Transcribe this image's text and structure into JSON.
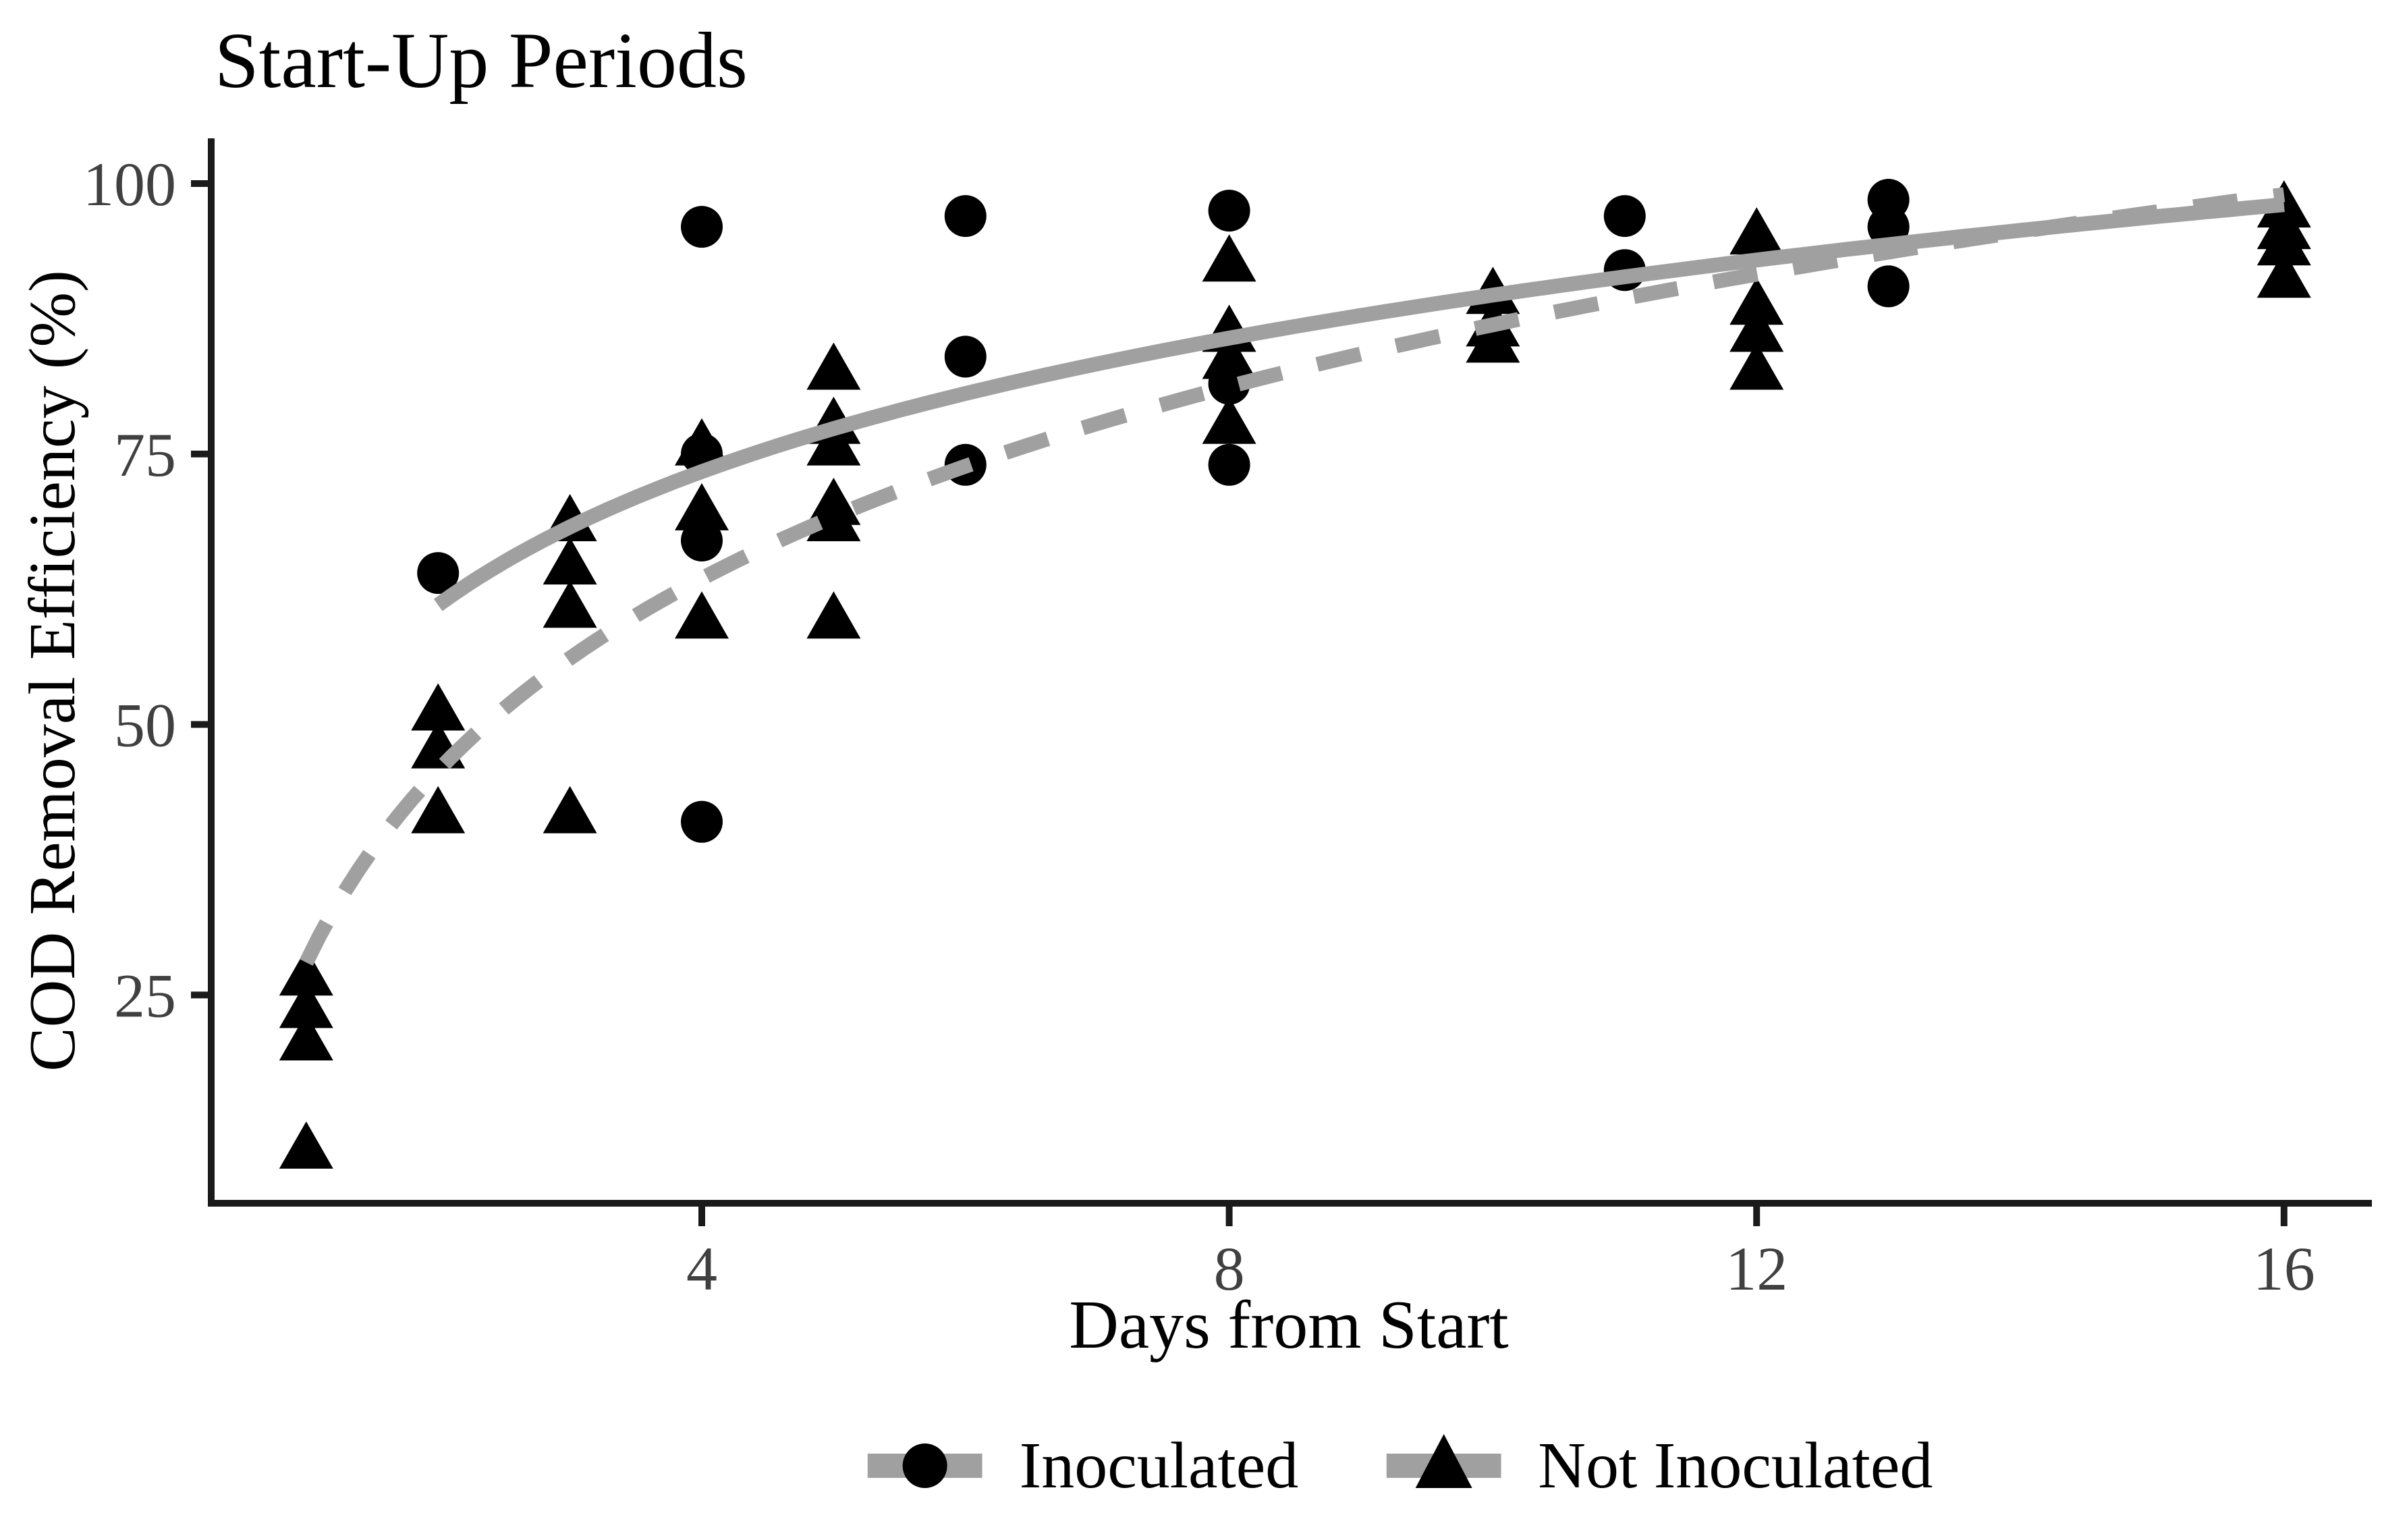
{
  "chart_data": {
    "type": "scatter",
    "title": "Start-Up Periods",
    "xlabel": "Days from Start",
    "ylabel": "COD Removal Efficiency (%)",
    "x_ticks": [
      4,
      8,
      12,
      16
    ],
    "y_ticks": [
      25,
      50,
      75,
      100
    ],
    "xlim": [
      0.3,
      16.6
    ],
    "ylim": [
      6,
      104
    ],
    "grid": false,
    "legend_position": "bottom",
    "series": [
      {
        "name": "Inoculated",
        "marker": "circle",
        "line_style": "solid",
        "points": [
          {
            "x": 2,
            "y": 64
          },
          {
            "x": 4,
            "y": 96
          },
          {
            "x": 4,
            "y": 75
          },
          {
            "x": 4,
            "y": 67
          },
          {
            "x": 4,
            "y": 41
          },
          {
            "x": 6,
            "y": 97
          },
          {
            "x": 6,
            "y": 84
          },
          {
            "x": 6,
            "y": 74
          },
          {
            "x": 8,
            "y": 97.5
          },
          {
            "x": 8,
            "y": 81.5
          },
          {
            "x": 8,
            "y": 74
          },
          {
            "x": 11,
            "y": 97
          },
          {
            "x": 11,
            "y": 92
          },
          {
            "x": 13,
            "y": 98.5
          },
          {
            "x": 13,
            "y": 96
          },
          {
            "x": 13,
            "y": 90.5
          }
        ],
        "trend": {
          "type": "log",
          "formula": "y = 48.7 + 17.8*ln(x)",
          "a": 48.7,
          "b": 17.8,
          "domain": [
            2,
            16
          ]
        }
      },
      {
        "name": "Not Inoculated",
        "marker": "triangle",
        "line_style": "dashed",
        "points": [
          {
            "x": 1,
            "y": 27
          },
          {
            "x": 1,
            "y": 24
          },
          {
            "x": 1,
            "y": 21
          },
          {
            "x": 1,
            "y": 11
          },
          {
            "x": 2,
            "y": 51.5
          },
          {
            "x": 2,
            "y": 48
          },
          {
            "x": 2,
            "y": 42
          },
          {
            "x": 3,
            "y": 69
          },
          {
            "x": 3,
            "y": 65
          },
          {
            "x": 3,
            "y": 61
          },
          {
            "x": 3,
            "y": 42
          },
          {
            "x": 4,
            "y": 76
          },
          {
            "x": 4,
            "y": 70
          },
          {
            "x": 4,
            "y": 60
          },
          {
            "x": 5,
            "y": 83
          },
          {
            "x": 5,
            "y": 78
          },
          {
            "x": 5,
            "y": 76
          },
          {
            "x": 5,
            "y": 70.5
          },
          {
            "x": 5,
            "y": 69
          },
          {
            "x": 5,
            "y": 60
          },
          {
            "x": 8,
            "y": 93
          },
          {
            "x": 8,
            "y": 86.5
          },
          {
            "x": 8,
            "y": 84
          },
          {
            "x": 8,
            "y": 78
          },
          {
            "x": 10,
            "y": 90
          },
          {
            "x": 10,
            "y": 87
          },
          {
            "x": 10,
            "y": 85.5
          },
          {
            "x": 12,
            "y": 95.5
          },
          {
            "x": 12,
            "y": 89
          },
          {
            "x": 12,
            "y": 86.5
          },
          {
            "x": 12,
            "y": 83
          },
          {
            "x": 16,
            "y": 98
          },
          {
            "x": 16,
            "y": 96
          },
          {
            "x": 16,
            "y": 94.5
          },
          {
            "x": 16,
            "y": 91.5
          }
        ],
        "trend": {
          "type": "log",
          "formula": "y = 28 + 25.6*ln(x)",
          "a": 28,
          "b": 25.6,
          "domain": [
            1,
            16
          ]
        }
      }
    ]
  },
  "legend": {
    "items": [
      {
        "label": "Inoculated",
        "marker": "circle",
        "line": "solid"
      },
      {
        "label": "Not Inoculated",
        "marker": "triangle",
        "line": "dashed"
      }
    ]
  },
  "colors": {
    "marker": "#000000",
    "trend_line": "#a0a0a0",
    "tick_label": "#404040",
    "axis": "#1a1a1a",
    "title": "#000000",
    "background": "#ffffff"
  }
}
